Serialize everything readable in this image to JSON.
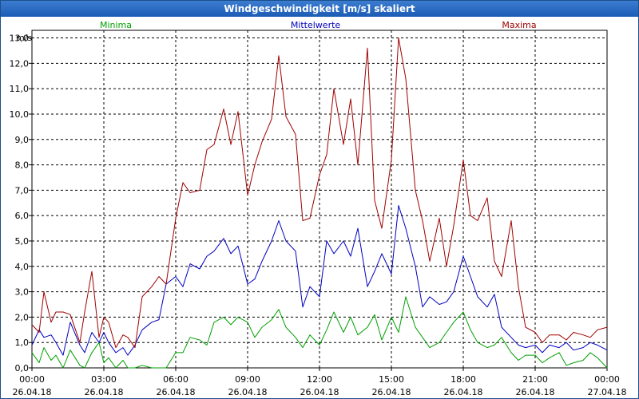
{
  "chart_data": {
    "type": "line",
    "title": "Windgeschwindigkeit [m/s] skaliert",
    "ylabel": "m/s",
    "ylim": [
      0,
      13.3
    ],
    "yticks": [
      "0,0",
      "1,0",
      "2,0",
      "3,0",
      "4,0",
      "5,0",
      "6,0",
      "7,0",
      "8,0",
      "9,0",
      "10,0",
      "11,0",
      "12,0",
      "13,0"
    ],
    "xlim": [
      0,
      24
    ],
    "xticks": [
      {
        "time": "00:00",
        "date": "26.04.18"
      },
      {
        "time": "03:00",
        "date": "26.04.18"
      },
      {
        "time": "06:00",
        "date": "26.04.18"
      },
      {
        "time": "09:00",
        "date": "26.04.18"
      },
      {
        "time": "12:00",
        "date": "26.04.18"
      },
      {
        "time": "15:00",
        "date": "26.04.18"
      },
      {
        "time": "18:00",
        "date": "26.04.18"
      },
      {
        "time": "21:00",
        "date": "26.04.18"
      },
      {
        "time": "00:00",
        "date": "27.04.18"
      }
    ],
    "grid": true,
    "series": [
      {
        "name": "Minima",
        "color": "#00a000",
        "x": [
          0,
          0.3,
          0.5,
          0.8,
          1,
          1.3,
          1.6,
          2,
          2.2,
          2.5,
          2.8,
          3,
          3.2,
          3.5,
          3.8,
          4,
          4.3,
          4.6,
          5,
          5.3,
          5.6,
          6,
          6.3,
          6.6,
          7,
          7.3,
          7.6,
          8,
          8.3,
          8.6,
          9,
          9.3,
          9.6,
          10,
          10.3,
          10.6,
          11,
          11.3,
          11.6,
          12,
          12.3,
          12.6,
          13,
          13.3,
          13.6,
          14,
          14.3,
          14.6,
          15,
          15.3,
          15.6,
          16,
          16.3,
          16.6,
          17,
          17.3,
          17.6,
          18,
          18.3,
          18.6,
          19,
          19.3,
          19.6,
          20,
          20.3,
          20.6,
          21,
          21.3,
          21.6,
          22,
          22.3,
          22.6,
          23,
          23.3,
          23.6,
          24
        ],
        "values": [
          0.6,
          0.2,
          0.8,
          0.3,
          0.5,
          0.0,
          0.7,
          0.1,
          0.0,
          0.6,
          1.0,
          0.2,
          0.4,
          0.0,
          0.3,
          0.0,
          0.0,
          0.1,
          0.0,
          0.0,
          0.0,
          0.6,
          0.6,
          1.2,
          1.1,
          0.9,
          1.8,
          2.0,
          1.7,
          2.0,
          1.8,
          1.2,
          1.6,
          1.9,
          2.3,
          1.6,
          1.2,
          0.8,
          1.3,
          0.9,
          1.5,
          2.2,
          1.4,
          2.0,
          1.3,
          1.6,
          2.1,
          1.1,
          2.0,
          1.4,
          2.8,
          1.6,
          1.2,
          0.8,
          1.0,
          1.4,
          1.8,
          2.2,
          1.5,
          1.0,
          0.8,
          0.9,
          1.2,
          0.6,
          0.3,
          0.5,
          0.5,
          0.2,
          0.4,
          0.6,
          0.1,
          0.2,
          0.3,
          0.6,
          0.4,
          0.0
        ]
      },
      {
        "name": "Mittelwerte",
        "color": "#0000c0",
        "x": [
          0,
          0.3,
          0.5,
          0.8,
          1,
          1.3,
          1.6,
          2,
          2.2,
          2.5,
          2.8,
          3,
          3.2,
          3.5,
          3.8,
          4,
          4.3,
          4.6,
          5,
          5.3,
          5.6,
          6,
          6.3,
          6.6,
          7,
          7.3,
          7.6,
          8,
          8.3,
          8.6,
          9,
          9.3,
          9.6,
          10,
          10.3,
          10.6,
          11,
          11.3,
          11.6,
          12,
          12.3,
          12.6,
          13,
          13.3,
          13.6,
          14,
          14.3,
          14.6,
          15,
          15.3,
          15.6,
          16,
          16.3,
          16.6,
          17,
          17.3,
          17.6,
          18,
          18.3,
          18.6,
          19,
          19.3,
          19.6,
          20,
          20.3,
          20.6,
          21,
          21.3,
          21.6,
          22,
          22.3,
          22.6,
          23,
          23.3,
          23.6,
          24
        ],
        "values": [
          0.9,
          1.5,
          1.2,
          1.3,
          1.0,
          0.5,
          1.8,
          0.9,
          0.6,
          1.4,
          1.0,
          1.4,
          1.0,
          0.6,
          0.8,
          0.5,
          0.9,
          1.5,
          1.8,
          1.9,
          3.3,
          3.6,
          3.2,
          4.1,
          3.9,
          4.4,
          4.6,
          5.1,
          4.5,
          4.8,
          3.3,
          3.5,
          4.2,
          5.0,
          5.8,
          5.0,
          4.6,
          2.4,
          3.2,
          2.8,
          5.0,
          4.5,
          5.0,
          4.4,
          5.5,
          3.2,
          3.8,
          4.5,
          3.7,
          6.4,
          5.5,
          4.0,
          2.4,
          2.8,
          2.5,
          2.6,
          3.0,
          4.4,
          3.6,
          2.8,
          2.4,
          2.9,
          1.6,
          1.2,
          0.9,
          0.8,
          0.9,
          0.6,
          0.9,
          0.8,
          1.0,
          0.7,
          0.8,
          1.0,
          0.9,
          0.7
        ]
      },
      {
        "name": "Maxima",
        "color": "#a00000",
        "x": [
          0,
          0.3,
          0.5,
          0.8,
          1,
          1.3,
          1.6,
          2,
          2.2,
          2.5,
          2.8,
          3,
          3.2,
          3.5,
          3.8,
          4,
          4.3,
          4.6,
          5,
          5.3,
          5.6,
          6,
          6.3,
          6.6,
          7,
          7.3,
          7.6,
          8,
          8.3,
          8.6,
          9,
          9.3,
          9.6,
          10,
          10.3,
          10.6,
          11,
          11.3,
          11.6,
          12,
          12.3,
          12.6,
          13,
          13.3,
          13.6,
          14,
          14.3,
          14.6,
          15,
          15.3,
          15.6,
          16,
          16.3,
          16.6,
          17,
          17.3,
          17.6,
          18,
          18.3,
          18.6,
          19,
          19.3,
          19.6,
          20,
          20.3,
          20.6,
          21,
          21.3,
          21.6,
          22,
          22.3,
          22.6,
          23,
          23.3,
          23.6,
          24
        ],
        "values": [
          1.7,
          1.4,
          3.0,
          1.8,
          2.2,
          2.2,
          2.1,
          1.0,
          2.2,
          3.8,
          1.2,
          2.0,
          1.8,
          0.8,
          1.3,
          1.2,
          0.8,
          2.8,
          3.2,
          3.6,
          3.3,
          5.9,
          7.3,
          6.9,
          7.0,
          8.6,
          8.8,
          10.2,
          8.8,
          10.1,
          6.8,
          8.0,
          8.9,
          9.8,
          12.3,
          9.9,
          9.2,
          5.8,
          5.9,
          7.6,
          8.4,
          11.0,
          8.8,
          10.6,
          8.0,
          12.6,
          6.6,
          5.5,
          8.2,
          13.0,
          11.4,
          7.0,
          5.8,
          4.2,
          5.9,
          4.0,
          5.6,
          8.2,
          6.0,
          5.8,
          6.7,
          4.2,
          3.6,
          5.8,
          3.2,
          1.6,
          1.4,
          1.0,
          1.3,
          1.3,
          1.1,
          1.4,
          1.3,
          1.2,
          1.5,
          1.6
        ]
      }
    ]
  }
}
